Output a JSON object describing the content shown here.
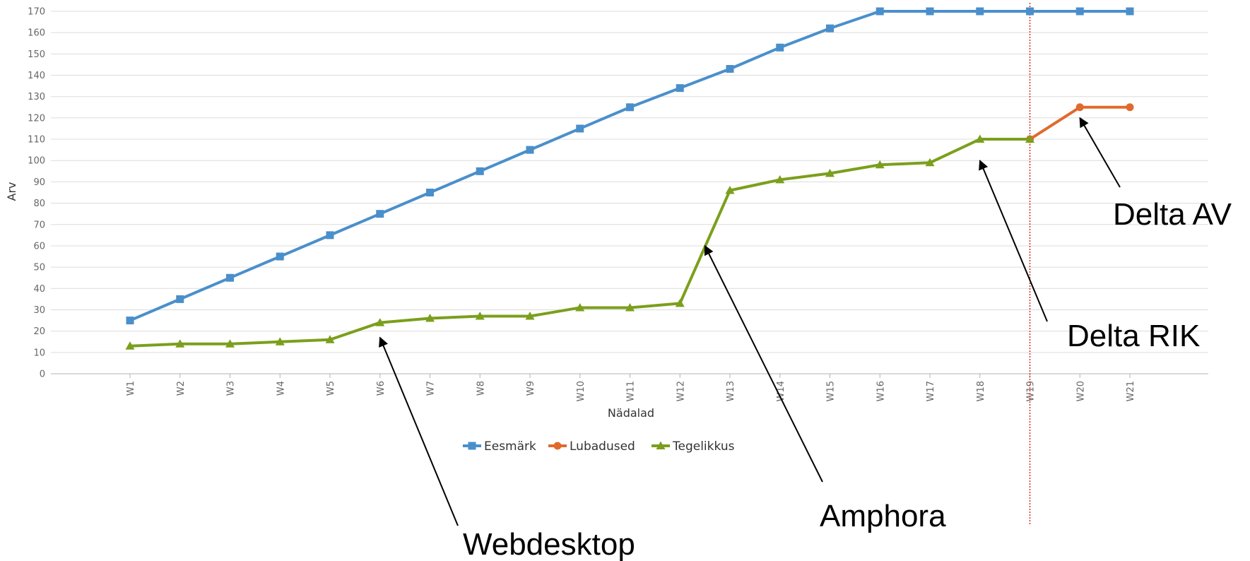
{
  "chart_data": {
    "type": "line",
    "title": "",
    "xlabel": "Nädalad",
    "ylabel": "Arv",
    "categories": [
      "W1",
      "W2",
      "W3",
      "W4",
      "W5",
      "W6",
      "W7",
      "W8",
      "W9",
      "W10",
      "W11",
      "W12",
      "W13",
      "W14",
      "W15",
      "W16",
      "W17",
      "W18",
      "W19",
      "W20",
      "W21"
    ],
    "ylim": [
      0,
      170
    ],
    "yticks": [
      0,
      10,
      20,
      30,
      40,
      50,
      60,
      70,
      80,
      90,
      100,
      110,
      120,
      130,
      140,
      150,
      160,
      170
    ],
    "grid": true,
    "legend_position": "bottom",
    "series": [
      {
        "name": "Eesmärk",
        "color": "#4a8fcb",
        "marker": "square",
        "values": [
          25,
          35,
          45,
          55,
          65,
          75,
          85,
          95,
          105,
          115,
          125,
          134,
          143,
          153,
          162,
          170,
          170,
          170,
          170,
          170,
          170
        ]
      },
      {
        "name": "Lubadused",
        "color": "#e06a2c",
        "marker": "circle",
        "values": [
          null,
          null,
          null,
          null,
          null,
          null,
          null,
          null,
          null,
          null,
          null,
          null,
          null,
          null,
          null,
          null,
          null,
          null,
          110,
          125,
          125
        ]
      },
      {
        "name": "Tegelikkus",
        "color": "#7b9f1c",
        "marker": "triangle",
        "values": [
          13,
          14,
          14,
          15,
          16,
          24,
          26,
          27,
          27,
          31,
          31,
          33,
          86,
          91,
          94,
          98,
          99,
          110,
          110,
          null,
          null
        ]
      }
    ],
    "reference_line": {
      "category": "W19",
      "color": "#d42a2a",
      "style": "dotted"
    },
    "annotations": [
      {
        "text": "Webdesktop",
        "point_category": "W6",
        "point_value": 17
      },
      {
        "text": "Amphora",
        "point_category": "W12.5",
        "point_value": 60
      },
      {
        "text": "Delta RIK",
        "point_category": "W18",
        "point_value": 100
      },
      {
        "text": "Delta AV",
        "point_category": "W20",
        "point_value": 120
      }
    ]
  }
}
